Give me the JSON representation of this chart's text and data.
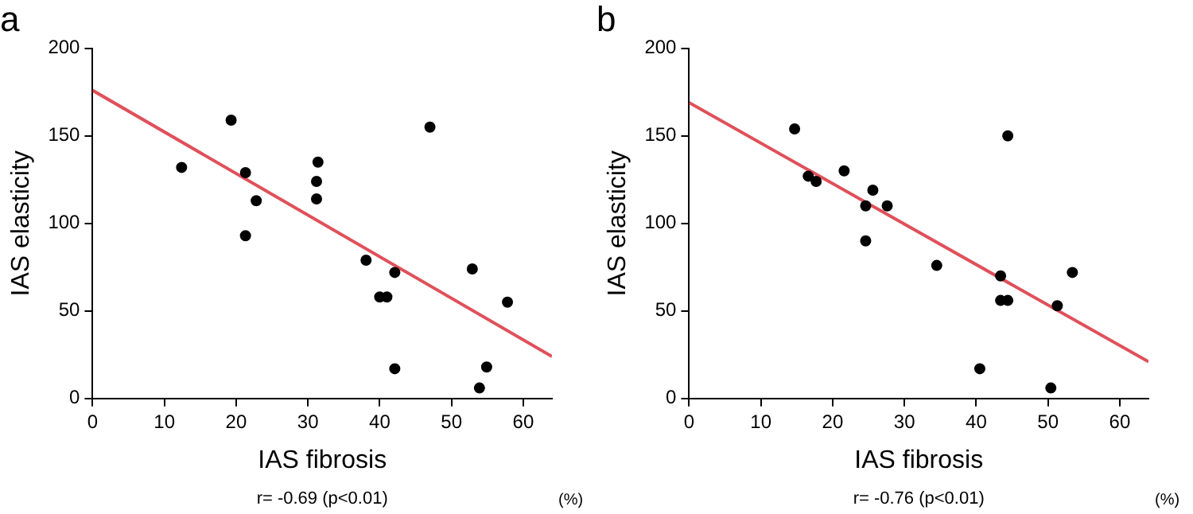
{
  "chart_data": [
    {
      "type": "scatter",
      "title": "a",
      "xlabel": "IAS fibrosis",
      "ylabel": "IAS elasticity",
      "annotations": [
        "(%)",
        "r= -0.69 (p<0.01)"
      ],
      "xlim": [
        0,
        64
      ],
      "ylim": [
        0,
        200
      ],
      "xticks": [
        0,
        10,
        20,
        30,
        40,
        50,
        60
      ],
      "yticks": [
        0,
        50,
        100,
        150,
        200
      ],
      "grid": false,
      "legend": false,
      "series": [
        {
          "marker": "circle",
          "color": "#000000",
          "x": [
            12.4,
            19.3,
            21.3,
            21.3,
            22.8,
            31.2,
            31.4,
            31.2,
            38.1,
            40.0,
            41.0,
            42.1,
            42.1,
            47.0,
            52.9,
            54.9,
            53.9,
            57.8
          ],
          "values": [
            132,
            159,
            129,
            93,
            113,
            124,
            135,
            114,
            79,
            58,
            58,
            72,
            17,
            155,
            74,
            18,
            6,
            55
          ]
        },
        {
          "type": "line",
          "marker": "none",
          "color": "#e0505a",
          "x": [
            0,
            64
          ],
          "values": [
            176,
            24
          ]
        }
      ]
    },
    {
      "type": "scatter",
      "title": "b",
      "xlabel": "IAS fibrosis",
      "ylabel": "IAS elasticity",
      "annotations": [
        "(%)",
        "r= -0.76 (p<0.01)"
      ],
      "xlim": [
        0,
        64
      ],
      "ylim": [
        0,
        200
      ],
      "xticks": [
        0,
        10,
        20,
        30,
        40,
        50,
        60
      ],
      "yticks": [
        0,
        50,
        100,
        150,
        200
      ],
      "grid": false,
      "legend": false,
      "series": [
        {
          "marker": "circle",
          "color": "#000000",
          "x": [
            14.7,
            16.6,
            17.7,
            21.6,
            24.6,
            24.6,
            25.6,
            27.6,
            34.5,
            40.5,
            43.4,
            43.4,
            44.4,
            44.4,
            50.4,
            51.3,
            53.4
          ],
          "values": [
            154,
            127,
            124,
            130,
            110,
            90,
            119,
            110,
            76,
            17,
            70,
            56,
            56,
            150,
            6,
            53,
            72
          ]
        },
        {
          "type": "line",
          "marker": "none",
          "color": "#e0505a",
          "x": [
            0,
            64
          ],
          "values": [
            169,
            21
          ]
        }
      ]
    }
  ]
}
